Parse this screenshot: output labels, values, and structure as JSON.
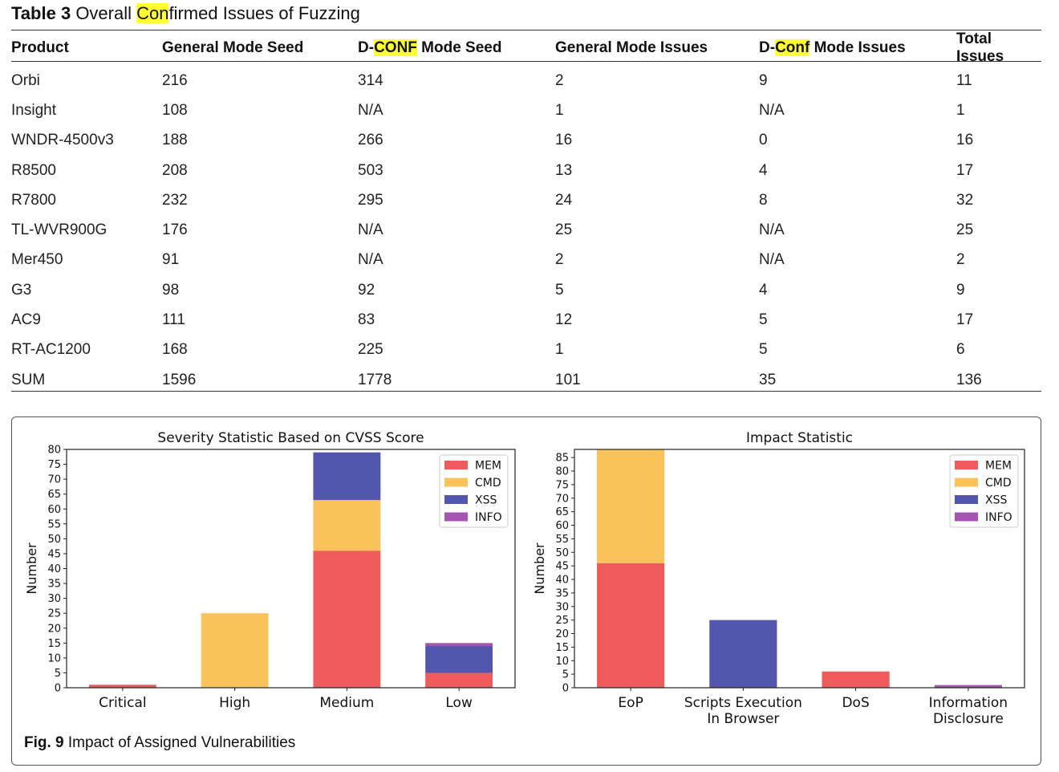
{
  "table": {
    "label": "Table 3",
    "title_before": "Overall ",
    "title_highlight": "Con",
    "title_after": "firmed Issues of Fuzzing",
    "headers": [
      {
        "before": "Product",
        "hl": "",
        "after": ""
      },
      {
        "before": "General Mode Seed",
        "hl": "",
        "after": ""
      },
      {
        "before": "D-",
        "hl": "CONF",
        "after": " Mode Seed"
      },
      {
        "before": "General Mode Issues",
        "hl": "",
        "after": ""
      },
      {
        "before": "D-",
        "hl": "Conf",
        "after": " Mode Issues"
      },
      {
        "before": "Total Issues",
        "hl": "",
        "after": ""
      }
    ],
    "rows": [
      [
        "Orbi",
        "216",
        "314",
        "2",
        "9",
        "11"
      ],
      [
        "Insight",
        "108",
        "N/A",
        "1",
        "N/A",
        "1"
      ],
      [
        "WNDR-4500v3",
        "188",
        "266",
        "16",
        "0",
        "16"
      ],
      [
        "R8500",
        "208",
        "503",
        "13",
        "4",
        "17"
      ],
      [
        "R7800",
        "232",
        "295",
        "24",
        "8",
        "32"
      ],
      [
        "TL-WVR900G",
        "176",
        "N/A",
        "25",
        "N/A",
        "25"
      ],
      [
        "Mer450",
        "91",
        "N/A",
        "2",
        "N/A",
        "2"
      ],
      [
        "G3",
        "98",
        "92",
        "5",
        "4",
        "9"
      ],
      [
        "AC9",
        "111",
        "83",
        "12",
        "5",
        "17"
      ],
      [
        "RT-AC1200",
        "168",
        "225",
        "1",
        "5",
        "6"
      ],
      [
        "SUM",
        "1596",
        "1778",
        "101",
        "35",
        "136"
      ]
    ]
  },
  "figure": {
    "label": "Fig. 9",
    "caption": "Impact of Assigned Vulnerabilities"
  },
  "colors": {
    "MEM": "#ef5a5a",
    "CMD": "#f9c25a",
    "XSS": "#5256ad",
    "INFO": "#a355b0"
  },
  "chart_data": [
    {
      "type": "bar",
      "stacked": true,
      "title": "Severity Statistic Based on CVSS Score",
      "xlabel": "",
      "ylabel": "Number",
      "ylim": [
        0,
        80
      ],
      "yticks": [
        0,
        5,
        10,
        15,
        20,
        25,
        30,
        35,
        40,
        45,
        50,
        55,
        60,
        65,
        70,
        75,
        80
      ],
      "categories": [
        [
          "Critical"
        ],
        [
          "High"
        ],
        [
          "Medium"
        ],
        [
          "Low"
        ]
      ],
      "series": [
        {
          "name": "MEM",
          "values": [
            1,
            0,
            46,
            5
          ]
        },
        {
          "name": "CMD",
          "values": [
            0,
            25,
            17,
            0
          ]
        },
        {
          "name": "XSS",
          "values": [
            0,
            0,
            16,
            9
          ]
        },
        {
          "name": "INFO",
          "values": [
            0,
            0,
            0,
            1
          ]
        }
      ],
      "legend": "top-right",
      "grid": false
    },
    {
      "type": "bar",
      "stacked": true,
      "title": "Impact Statistic",
      "xlabel": "",
      "ylabel": "Number",
      "ylim": [
        0,
        88
      ],
      "yticks": [
        0,
        5,
        10,
        15,
        20,
        25,
        30,
        35,
        40,
        45,
        50,
        55,
        60,
        65,
        70,
        75,
        80,
        85
      ],
      "categories": [
        [
          "EoP"
        ],
        [
          "Scripts Execution",
          "In Browser"
        ],
        [
          "DoS"
        ],
        [
          "Information",
          "Disclosure"
        ]
      ],
      "series": [
        {
          "name": "MEM",
          "values": [
            46,
            0,
            6,
            0
          ]
        },
        {
          "name": "CMD",
          "values": [
            42,
            0,
            0,
            0
          ]
        },
        {
          "name": "XSS",
          "values": [
            0,
            25,
            0,
            0
          ]
        },
        {
          "name": "INFO",
          "values": [
            0,
            0,
            0,
            1
          ]
        }
      ],
      "legend": "top-right",
      "grid": false
    }
  ]
}
